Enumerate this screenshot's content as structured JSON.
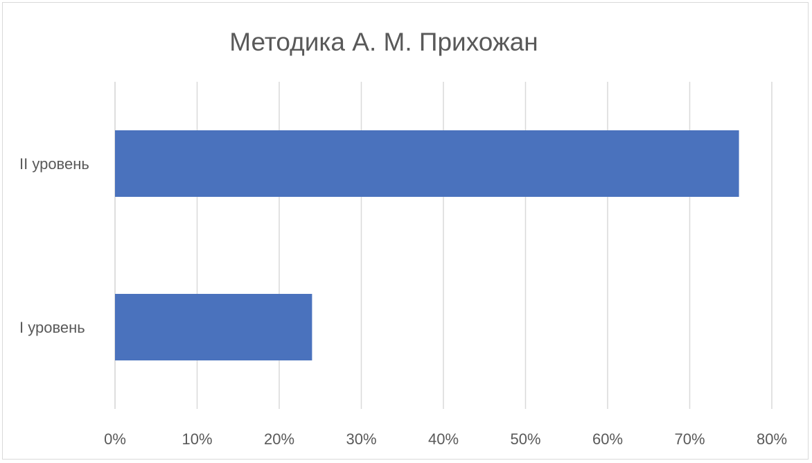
{
  "chart_data": {
    "type": "bar",
    "orientation": "horizontal",
    "title": "Методика А. М. Прихожан",
    "xlabel": "",
    "ylabel": "",
    "categories": [
      "II уровень",
      "I уровень"
    ],
    "values": [
      0.76,
      0.24
    ],
    "xlim": [
      0,
      0.8
    ],
    "x_ticks": [
      0,
      0.1,
      0.2,
      0.3,
      0.4,
      0.5,
      0.6,
      0.7,
      0.8
    ],
    "x_tick_labels": [
      "0%",
      "10%",
      "20%",
      "30%",
      "40%",
      "50%",
      "60%",
      "70%",
      "80%"
    ],
    "grid": true,
    "legend": "none",
    "colors": {
      "bar": "#4a72bd",
      "grid": "#d9d9d9",
      "text": "#595959",
      "border": "#d9d9d9"
    }
  }
}
